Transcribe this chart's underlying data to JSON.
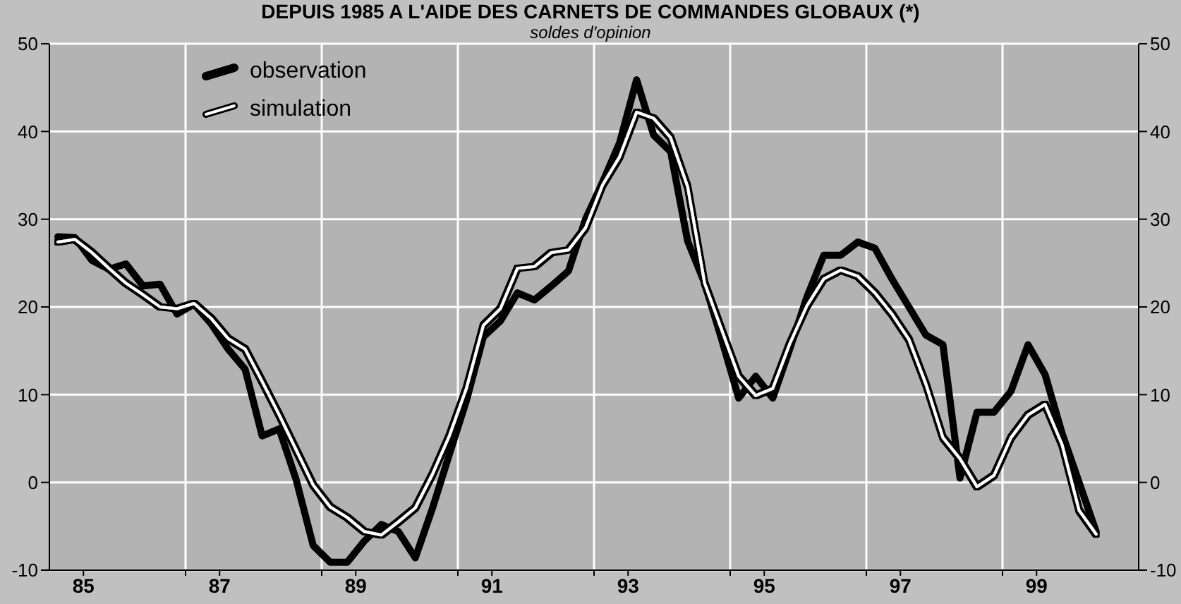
{
  "chart_data": {
    "type": "line",
    "title": "DEPUIS 1985 A L'AIDE DES CARNETS DE COMMANDES GLOBAUX (*)",
    "subtitle": "soldes d'opinion",
    "x": [
      84.625,
      84.875,
      85.125,
      85.375,
      85.625,
      85.875,
      86.125,
      86.375,
      86.625,
      86.875,
      87.125,
      87.375,
      87.625,
      87.875,
      88.125,
      88.375,
      88.625,
      88.875,
      89.125,
      89.375,
      89.625,
      89.875,
      90.125,
      90.375,
      90.625,
      90.875,
      91.125,
      91.375,
      91.625,
      91.875,
      92.125,
      92.375,
      92.625,
      92.875,
      93.125,
      93.375,
      93.625,
      93.875,
      94.125,
      94.375,
      94.625,
      94.875,
      95.125,
      95.375,
      95.625,
      95.875,
      96.125,
      96.375,
      96.625,
      96.875,
      97.125,
      97.375,
      97.625,
      97.875,
      98.125,
      98.375,
      98.625,
      98.875,
      99.125,
      99.375,
      99.625,
      99.875
    ],
    "series": [
      {
        "name": "observation",
        "color": "#000000",
        "values": [
          28.0,
          27.9,
          25.3,
          24.3,
          24.9,
          22.4,
          22.6,
          19.2,
          20.3,
          18.1,
          15.2,
          12.9,
          5.3,
          6.1,
          0.3,
          -7.2,
          -9.1,
          -9.1,
          -6.7,
          -4.8,
          -5.6,
          -8.6,
          -3.0,
          3.2,
          9.3,
          16.6,
          18.4,
          21.6,
          20.8,
          22.4,
          24.1,
          30.0,
          34.2,
          38.7,
          45.9,
          39.6,
          37.7,
          27.5,
          22.7,
          16.3,
          9.6,
          12.1,
          9.6,
          15.2,
          21.1,
          25.9,
          25.9,
          27.4,
          26.7,
          23.2,
          20.0,
          16.8,
          15.7,
          0.5,
          8.0,
          8.0,
          10.4,
          15.7,
          12.3,
          5.6,
          0.0,
          -5.6
        ]
      },
      {
        "name": "simulation",
        "color": "#ffffff",
        "values": [
          27.4,
          27.7,
          26.2,
          24.4,
          22.7,
          21.4,
          20.0,
          19.8,
          20.4,
          18.7,
          16.4,
          15.2,
          11.5,
          7.7,
          3.7,
          -0.3,
          -2.8,
          -4.0,
          -5.6,
          -6.0,
          -4.5,
          -2.9,
          0.9,
          5.3,
          10.7,
          17.9,
          19.8,
          24.4,
          24.6,
          26.2,
          26.5,
          29.0,
          33.9,
          37.1,
          42.2,
          41.5,
          39.3,
          33.7,
          22.7,
          17.4,
          12.1,
          9.9,
          10.7,
          15.8,
          20.1,
          23.2,
          24.2,
          23.5,
          21.6,
          19.2,
          16.3,
          11.2,
          5.1,
          2.7,
          -0.5,
          0.8,
          5.1,
          7.7,
          8.9,
          4.3,
          -3.2,
          -5.9
        ]
      }
    ],
    "xlim": [
      84.5,
      100.5
    ],
    "xticks": [
      85,
      {
        "value": 86.5,
        "label": null
      },
      87,
      {
        "value": 88.5,
        "label": null
      },
      89,
      {
        "value": 90.5,
        "label": null
      },
      91,
      {
        "value": 92.5,
        "label": null
      },
      93,
      {
        "value": 94.5,
        "label": null
      },
      95,
      {
        "value": 96.5,
        "label": null
      },
      97,
      {
        "value": 98.5,
        "label": null
      },
      99
    ],
    "ylim": [
      -10,
      50
    ],
    "yticks": [
      -10,
      0,
      10,
      20,
      30,
      40,
      50
    ],
    "y2lim": [
      -10,
      50
    ],
    "y2ticks": [
      -10,
      0,
      10,
      20,
      30,
      40,
      50
    ],
    "grid": true,
    "legend": "top left",
    "marker": "none",
    "line_style": "solid"
  }
}
